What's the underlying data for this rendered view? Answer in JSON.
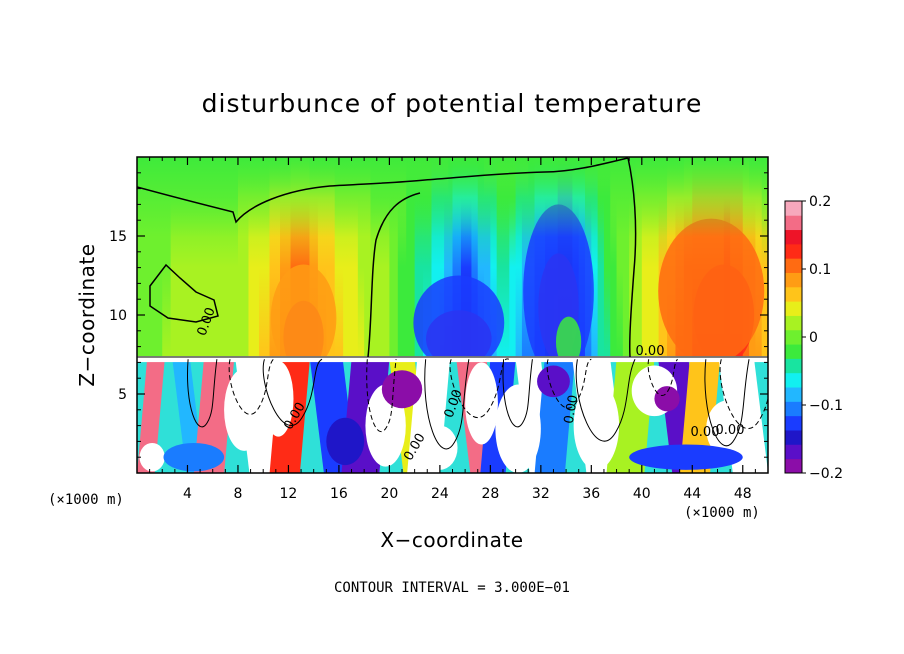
{
  "chart_data": {
    "type": "heatmap",
    "title": "disturbunce of potential temperature",
    "xlabel": "X−coordinate",
    "ylabel": "Z−coordinate",
    "x_unit": "(×1000 m)",
    "x_unit_right": "(×1000 m)",
    "xlim": [
      0,
      50
    ],
    "ylim": [
      0,
      20
    ],
    "x_ticks": [
      4,
      8,
      12,
      16,
      20,
      24,
      28,
      32,
      36,
      40,
      44,
      48
    ],
    "y_ticks": [
      5,
      10,
      15
    ],
    "colorbar": {
      "range": [
        -0.2,
        0.2
      ],
      "tick_values": [
        0.2,
        0.1,
        0,
        -0.1,
        -0.2
      ],
      "tick_labels": [
        "0.2",
        "0.1",
        "0",
        "−0.1",
        "−0.2"
      ],
      "colors": [
        "#8B0DA8",
        "#5A0FC8",
        "#1F16C8",
        "#1A3CFF",
        "#1A7CFF",
        "#22B7FF",
        "#12F0F0",
        "#18E4A0",
        "#3CEA3C",
        "#6EF02E",
        "#A8F222",
        "#E8EE1A",
        "#FFC41A",
        "#FF9C14",
        "#FF6B12",
        "#FF2B16",
        "#EE1428",
        "#F36C86",
        "#F7A8BC"
      ]
    },
    "contour_labels": [
      "0.00",
      "0.00",
      "0.00",
      "0.00",
      "0.00",
      "0.00",
      "0.00",
      "0.00"
    ],
    "upper_layer_columns": [
      {
        "x": 0,
        "v": 0.0
      },
      {
        "x": 4,
        "v": 0.02
      },
      {
        "x": 8,
        "v": 0.02
      },
      {
        "x": 13,
        "v": 0.12
      },
      {
        "x": 17,
        "v": 0.04
      },
      {
        "x": 20,
        "v": 0.01
      },
      {
        "x": 24,
        "v": -0.08
      },
      {
        "x": 26,
        "v": -0.15
      },
      {
        "x": 29,
        "v": -0.05
      },
      {
        "x": 32,
        "v": -0.13
      },
      {
        "x": 34,
        "v": -0.18
      },
      {
        "x": 37,
        "v": -0.04
      },
      {
        "x": 40,
        "v": 0.03
      },
      {
        "x": 44,
        "v": 0.12
      },
      {
        "x": 47,
        "v": 0.14
      },
      {
        "x": 50,
        "v": 0.06
      }
    ]
  },
  "note": "CONTOUR INTERVAL = 3.000E−01"
}
